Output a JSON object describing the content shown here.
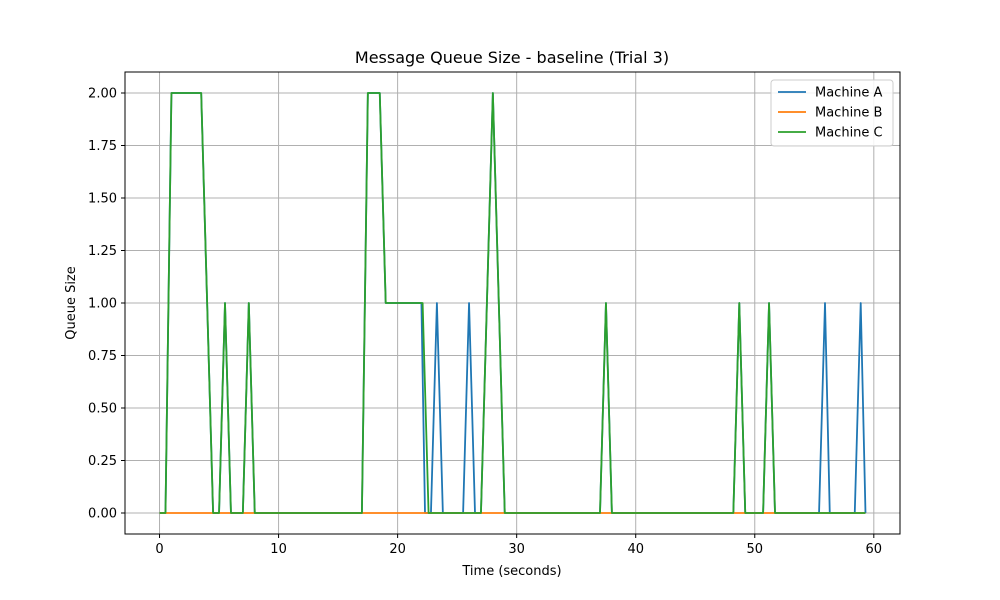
{
  "chart_data": {
    "type": "line",
    "title": "Message Queue Size - baseline (Trial 3)",
    "xlabel": "Time (seconds)",
    "ylabel": "Queue Size",
    "xlim": [
      -2.9,
      62.2
    ],
    "ylim": [
      -0.1,
      2.1
    ],
    "xticks": [
      0,
      10,
      20,
      30,
      40,
      50,
      60
    ],
    "yticks": [
      0.0,
      0.25,
      0.5,
      0.75,
      1.0,
      1.25,
      1.5,
      1.75,
      2.0
    ],
    "ytick_labels": [
      "0.00",
      "0.25",
      "0.50",
      "0.75",
      "1.00",
      "1.25",
      "1.50",
      "1.75",
      "2.00"
    ],
    "grid": true,
    "legend_position": "top-right",
    "series": [
      {
        "name": "Machine A",
        "color": "#1f77b4",
        "x": [
          0,
          0.5,
          1.0,
          3.5,
          4.5,
          5.0,
          5.5,
          6.0,
          7.0,
          7.5,
          8.0,
          17.0,
          17.5,
          18.5,
          19.0,
          21.5,
          21.7,
          22.0,
          22.3,
          22.8,
          23.3,
          23.8,
          25.5,
          26.0,
          26.5,
          27.0,
          28.0,
          29.0,
          37.0,
          37.5,
          38.0,
          48.2,
          48.7,
          49.2,
          50.7,
          51.2,
          51.7,
          55.4,
          55.9,
          56.3,
          58.4,
          58.9,
          59.3
        ],
        "y": [
          0,
          0,
          2,
          2,
          0,
          0,
          1,
          0,
          0,
          1,
          0,
          0,
          2,
          2,
          1,
          1,
          1,
          1,
          0,
          0,
          1,
          0,
          0,
          1,
          0,
          0,
          2,
          0,
          0,
          1,
          0,
          0,
          1,
          0,
          0,
          1,
          0,
          0,
          1,
          0,
          0,
          1,
          0
        ]
      },
      {
        "name": "Machine B",
        "color": "#ff7f0e",
        "x": [
          0,
          59.3
        ],
        "y": [
          0,
          0
        ]
      },
      {
        "name": "Machine C",
        "color": "#2ca02c",
        "x": [
          0,
          0.5,
          1.0,
          3.5,
          4.5,
          5.0,
          5.5,
          6.0,
          7.0,
          7.5,
          8.0,
          17.0,
          17.5,
          18.5,
          19.0,
          21.8,
          22.1,
          22.6,
          27.0,
          28.0,
          29.0,
          37.0,
          37.5,
          38.0,
          48.2,
          48.7,
          49.2,
          50.7,
          51.2,
          51.7,
          59.3
        ],
        "y": [
          0,
          0,
          2,
          2,
          0,
          0,
          1,
          0,
          0,
          1,
          0,
          0,
          2,
          2,
          1,
          1,
          1,
          0,
          0,
          2,
          0,
          0,
          1,
          0,
          0,
          1,
          0,
          0,
          1,
          0,
          0
        ]
      }
    ]
  }
}
